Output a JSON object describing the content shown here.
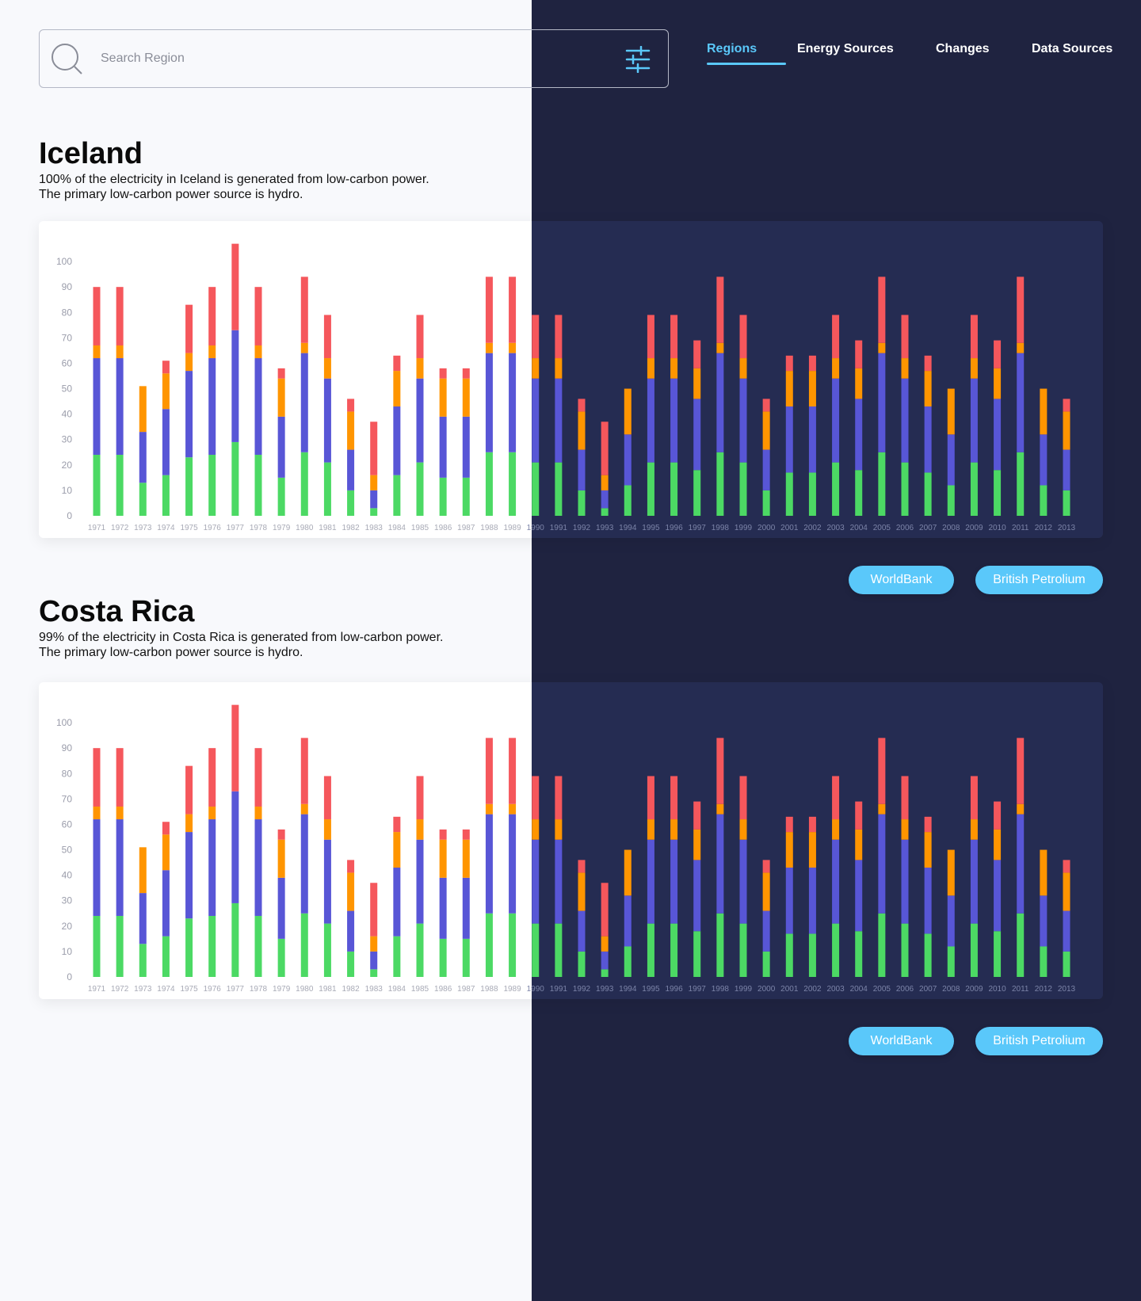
{
  "search": {
    "placeholder": "Search Region"
  },
  "nav": [
    "Regions",
    "Energy Sources",
    "Changes",
    "Data Sources"
  ],
  "chart_data": [
    {
      "type": "bar",
      "stacked": true,
      "title": "Iceland",
      "subtitle": "100% of the electricity in Iceland is generated from low-carbon power. The primary low-carbon power source is hydro.",
      "categories": [
        "1971",
        "1972",
        "1973",
        "1974",
        "1975",
        "1976",
        "1977",
        "1978",
        "1979",
        "1980",
        "1981",
        "1982",
        "1983",
        "1984",
        "1985",
        "1986",
        "1987",
        "1988",
        "1989",
        "1990",
        "1991",
        "1992",
        "1993",
        "1994",
        "1995",
        "1996",
        "1997",
        "1998",
        "1999",
        "2000",
        "2001",
        "2002",
        "2003",
        "2004",
        "2005",
        "2006",
        "2007",
        "2008",
        "2009",
        "2010",
        "2011",
        "2012",
        "2013"
      ],
      "series": [
        {
          "color": "#4cd964",
          "values": [
            24,
            24,
            13,
            16,
            23,
            24,
            29,
            24,
            15,
            25,
            21,
            10,
            3,
            16,
            21,
            15,
            15,
            25,
            25,
            21,
            21,
            10,
            3,
            12,
            21,
            21,
            18,
            25,
            21,
            10,
            17,
            17,
            21,
            18,
            25,
            21,
            17,
            12,
            21,
            18,
            25,
            12,
            10
          ]
        },
        {
          "color": "#5856d6",
          "values": [
            38,
            38,
            20,
            26,
            34,
            38,
            44,
            38,
            24,
            39,
            33,
            16,
            7,
            27,
            33,
            24,
            24,
            39,
            39,
            33,
            33,
            16,
            7,
            20,
            33,
            33,
            28,
            39,
            33,
            16,
            26,
            26,
            33,
            28,
            39,
            33,
            26,
            20,
            33,
            28,
            39,
            20,
            16
          ]
        },
        {
          "color": "#ff9500",
          "values": [
            5,
            5,
            18,
            14,
            7,
            5,
            0,
            5,
            15,
            4,
            8,
            15,
            6,
            14,
            8,
            15,
            15,
            4,
            4,
            8,
            8,
            15,
            6,
            18,
            8,
            8,
            12,
            4,
            8,
            15,
            14,
            14,
            8,
            12,
            4,
            8,
            14,
            18,
            8,
            12,
            4,
            18,
            15
          ]
        },
        {
          "color": "#f5575c",
          "values": [
            23,
            23,
            0,
            5,
            19,
            23,
            34,
            23,
            4,
            26,
            17,
            5,
            21,
            6,
            17,
            4,
            4,
            26,
            26,
            17,
            17,
            5,
            21,
            0,
            17,
            17,
            11,
            26,
            17,
            5,
            6,
            6,
            17,
            11,
            26,
            17,
            6,
            0,
            17,
            11,
            26,
            0,
            5
          ]
        }
      ],
      "ylim": [
        0,
        110
      ],
      "yticks": [
        0,
        10,
        20,
        30,
        40,
        50,
        60,
        70,
        80,
        90,
        100
      ],
      "sources": [
        "WorldBank",
        "British Petrolium"
      ]
    },
    {
      "type": "bar",
      "stacked": true,
      "title": "Costa Rica",
      "subtitle": "99% of the electricity in Costa Rica is generated from low-carbon power. The primary low-carbon power source is hydro.",
      "categories": [
        "1971",
        "1972",
        "1973",
        "1974",
        "1975",
        "1976",
        "1977",
        "1978",
        "1979",
        "1980",
        "1981",
        "1982",
        "1983",
        "1984",
        "1985",
        "1986",
        "1987",
        "1988",
        "1989",
        "1990",
        "1991",
        "1992",
        "1993",
        "1994",
        "1995",
        "1996",
        "1997",
        "1998",
        "1999",
        "2000",
        "2001",
        "2002",
        "2003",
        "2004",
        "2005",
        "2006",
        "2007",
        "2008",
        "2009",
        "2010",
        "2011",
        "2012",
        "2013"
      ],
      "series": [
        {
          "color": "#4cd964",
          "values": [
            24,
            24,
            13,
            16,
            23,
            24,
            29,
            24,
            15,
            25,
            21,
            10,
            3,
            16,
            21,
            15,
            15,
            25,
            25,
            21,
            21,
            10,
            3,
            12,
            21,
            21,
            18,
            25,
            21,
            10,
            17,
            17,
            21,
            18,
            25,
            21,
            17,
            12,
            21,
            18,
            25,
            12,
            10
          ]
        },
        {
          "color": "#5856d6",
          "values": [
            38,
            38,
            20,
            26,
            34,
            38,
            44,
            38,
            24,
            39,
            33,
            16,
            7,
            27,
            33,
            24,
            24,
            39,
            39,
            33,
            33,
            16,
            7,
            20,
            33,
            33,
            28,
            39,
            33,
            16,
            26,
            26,
            33,
            28,
            39,
            33,
            26,
            20,
            33,
            28,
            39,
            20,
            16
          ]
        },
        {
          "color": "#ff9500",
          "values": [
            5,
            5,
            18,
            14,
            7,
            5,
            0,
            5,
            15,
            4,
            8,
            15,
            6,
            14,
            8,
            15,
            15,
            4,
            4,
            8,
            8,
            15,
            6,
            18,
            8,
            8,
            12,
            4,
            8,
            15,
            14,
            14,
            8,
            12,
            4,
            8,
            14,
            18,
            8,
            12,
            4,
            18,
            15
          ]
        },
        {
          "color": "#f5575c",
          "values": [
            23,
            23,
            0,
            5,
            19,
            23,
            34,
            23,
            4,
            26,
            17,
            5,
            21,
            6,
            17,
            4,
            4,
            26,
            26,
            17,
            17,
            5,
            21,
            0,
            17,
            17,
            11,
            26,
            17,
            5,
            6,
            6,
            17,
            11,
            26,
            17,
            6,
            0,
            17,
            11,
            26,
            0,
            5
          ]
        }
      ],
      "ylim": [
        0,
        110
      ],
      "yticks": [
        0,
        10,
        20,
        30,
        40,
        50,
        60,
        70,
        80,
        90,
        100
      ],
      "sources": [
        "WorldBank",
        "British Petrolium"
      ]
    }
  ]
}
